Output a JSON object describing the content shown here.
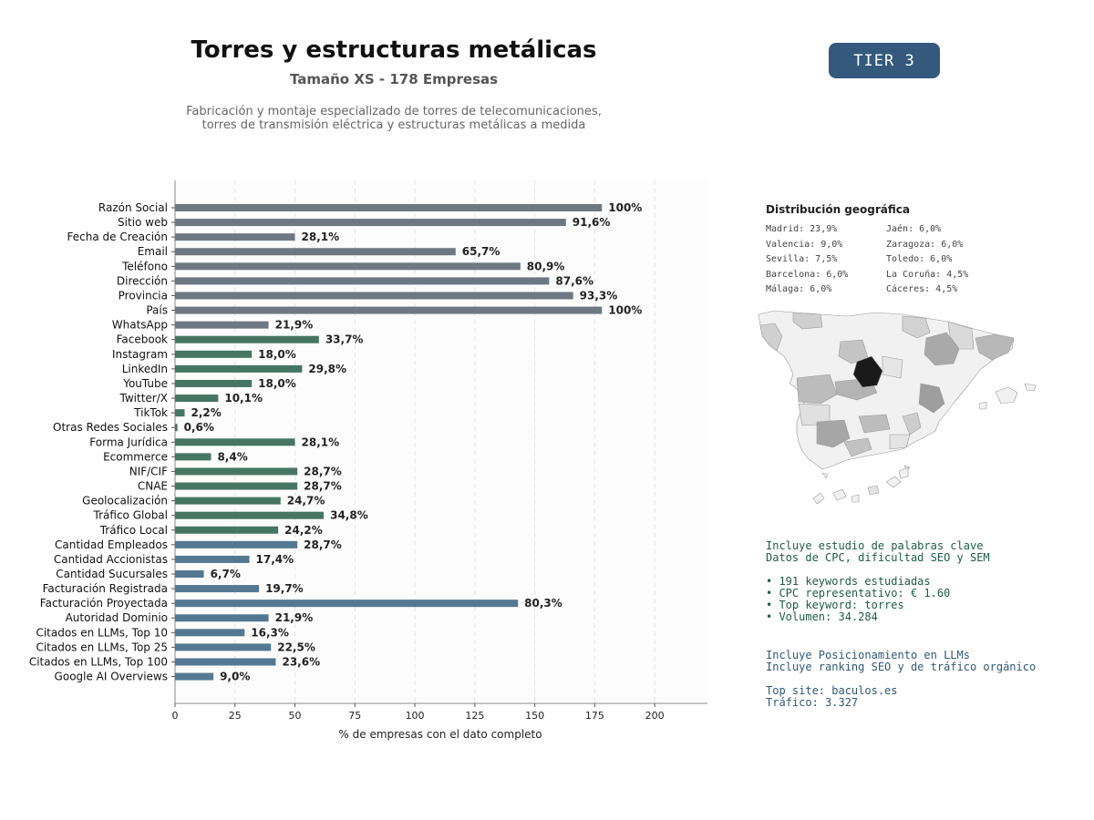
{
  "header": {
    "title": "Torres y estructuras metálicas",
    "subtitle": "Tamaño XS - 178 Empresas",
    "description_lines": [
      "Fabricación y montaje especializado de torres de telecomunicaciones,",
      "torres de transmisión eléctrica y estructuras metálicas a medida"
    ],
    "tier_badge": "TIER 3"
  },
  "chart_data": {
    "type": "bar",
    "orientation": "horizontal",
    "xlabel": "% de empresas con el dato completo",
    "xlim": [
      0,
      222
    ],
    "xticks": [
      0,
      25,
      50,
      75,
      100,
      125,
      150,
      175,
      200
    ],
    "grid": "vertical dashed",
    "categories": [
      "Razón Social",
      "Sitio web",
      "Fecha de Creación",
      "Email",
      "Teléfono",
      "Dirección",
      "Provincia",
      "País",
      "WhatsApp",
      "Facebook",
      "Instagram",
      "LinkedIn",
      "YouTube",
      "Twitter/X",
      "TikTok",
      "Otras Redes Sociales",
      "Forma Jurídica",
      "Ecommerce",
      "NIF/CIF",
      "CNAE",
      "Geolocalización",
      "Tráfico Global",
      "Tráfico Local",
      "Cantidad Empleados",
      "Cantidad Accionistas",
      "Cantidad Sucursales",
      "Facturación Registrada",
      "Facturación Proyectada",
      "Autoridad Dominio",
      "Citados en LLMs, Top 10",
      "Citados en LLMs, Top 25",
      "Citados en LLMs, Top 100",
      "Google AI Overviews"
    ],
    "values": [
      178,
      163,
      50,
      117,
      144,
      156,
      166,
      178,
      39,
      60,
      32,
      53,
      32,
      18,
      4,
      1,
      50,
      15,
      51,
      51,
      44,
      62,
      43,
      51,
      31,
      12,
      35,
      143,
      39,
      29,
      40,
      42,
      16
    ],
    "labels": [
      "100%",
      "91,6%",
      "28,1%",
      "65,7%",
      "80,9%",
      "87,6%",
      "93,3%",
      "100%",
      "21,9%",
      "33,7%",
      "18,0%",
      "29,8%",
      "18,0%",
      "10,1%",
      "2,2%",
      "0,6%",
      "28,1%",
      "8,4%",
      "28,7%",
      "28,7%",
      "24,7%",
      "34,8%",
      "24,2%",
      "28,7%",
      "17,4%",
      "6,7%",
      "19,7%",
      "80,3%",
      "21,9%",
      "16,3%",
      "22,5%",
      "23,6%",
      "9,0%"
    ],
    "colors": [
      "#6e7883",
      "#6e7883",
      "#6e7883",
      "#6e7883",
      "#6e7883",
      "#6e7883",
      "#6e7883",
      "#6e7883",
      "#6e7883",
      "#467563",
      "#467563",
      "#467563",
      "#467563",
      "#467563",
      "#467563",
      "#467563",
      "#467563",
      "#467563",
      "#467563",
      "#467563",
      "#467563",
      "#467563",
      "#467563",
      "#557892",
      "#557892",
      "#557892",
      "#557892",
      "#557892",
      "#557892",
      "#557892",
      "#557892",
      "#557892",
      "#557892"
    ]
  },
  "geo": {
    "title": "Distribución geográfica",
    "items": [
      "Madrid: 23,9%",
      "Jaén: 6,0%",
      "Valencia: 9,0%",
      "Zaragoza: 6,0%",
      "Sevilla: 7,5%",
      "Toledo: 6,0%",
      "Barcelona: 6,0%",
      "La Coruña: 4,5%",
      "Málaga: 6,0%",
      "Cáceres: 4,5%"
    ]
  },
  "seo_info": {
    "lines": [
      "Incluye estudio de palabras clave",
      "Datos de CPC, dificultad SEO y SEM",
      "",
      "• 191 keywords estudiadas",
      "• CPC representativo: € 1.60",
      "• Top keyword: torres",
      "• Volumen: 34.284"
    ]
  },
  "llm_info": {
    "lines": [
      "Incluye Posicionamiento en LLMs",
      "Incluye ranking SEO y de tráfico orgánico",
      "",
      "Top site: baculos.es",
      "Tráfico: 3.327"
    ]
  }
}
